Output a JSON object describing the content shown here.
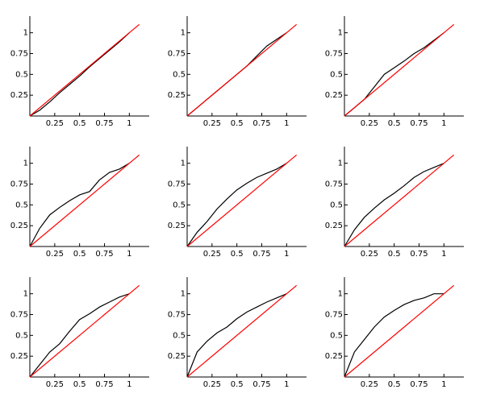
{
  "chart_data": [
    {
      "type": "line",
      "xlim": [
        0,
        1.2
      ],
      "ylim": [
        0,
        1.2
      ],
      "xticks": [
        0.25,
        0.5,
        0.75,
        1
      ],
      "yticks": [
        0.25,
        0.5,
        0.75,
        1
      ],
      "series": [
        {
          "color": "#000000",
          "x": [
            0,
            0.1,
            0.2,
            0.3,
            0.4,
            0.5,
            0.6,
            0.7,
            0.8,
            0.9,
            1
          ],
          "values": [
            0,
            0.07,
            0.17,
            0.28,
            0.38,
            0.48,
            0.59,
            0.69,
            0.79,
            0.89,
            1
          ]
        },
        {
          "color": "#ff0000",
          "x": [
            0,
            1.1
          ],
          "values": [
            0,
            1.1
          ]
        }
      ]
    },
    {
      "type": "line",
      "xlim": [
        0,
        1.2
      ],
      "ylim": [
        0,
        1.2
      ],
      "xticks": [
        0.25,
        0.5,
        0.75,
        1
      ],
      "yticks": [
        0.25,
        0.5,
        0.75,
        1
      ],
      "series": [
        {
          "color": "#000000",
          "x": [
            0,
            0.1,
            0.2,
            0.3,
            0.4,
            0.5,
            0.6,
            0.7,
            0.8,
            0.9,
            1
          ],
          "values": [
            0,
            0.1,
            0.2,
            0.3,
            0.4,
            0.5,
            0.6,
            0.72,
            0.84,
            0.92,
            1
          ]
        },
        {
          "color": "#ff0000",
          "x": [
            0,
            1.1
          ],
          "values": [
            0,
            1.1
          ]
        }
      ]
    },
    {
      "type": "line",
      "xlim": [
        0,
        1.2
      ],
      "ylim": [
        0,
        1.2
      ],
      "xticks": [
        0.25,
        0.5,
        0.75,
        1
      ],
      "yticks": [
        0.25,
        0.5,
        0.75,
        1
      ],
      "series": [
        {
          "color": "#000000",
          "x": [
            0,
            0.1,
            0.2,
            0.3,
            0.4,
            0.5,
            0.6,
            0.7,
            0.8,
            0.9,
            1
          ],
          "values": [
            0,
            0.1,
            0.2,
            0.35,
            0.5,
            0.58,
            0.66,
            0.75,
            0.82,
            0.91,
            1
          ]
        },
        {
          "color": "#ff0000",
          "x": [
            0,
            1.1
          ],
          "values": [
            0,
            1.1
          ]
        }
      ]
    },
    {
      "type": "line",
      "xlim": [
        0,
        1.2
      ],
      "ylim": [
        0,
        1.2
      ],
      "xticks": [
        0.25,
        0.5,
        0.75,
        1
      ],
      "yticks": [
        0.25,
        0.5,
        0.75,
        1
      ],
      "series": [
        {
          "color": "#000000",
          "x": [
            0,
            0.1,
            0.2,
            0.3,
            0.4,
            0.5,
            0.6,
            0.7,
            0.8,
            0.9,
            1
          ],
          "values": [
            0,
            0.22,
            0.38,
            0.47,
            0.55,
            0.62,
            0.66,
            0.8,
            0.89,
            0.93,
            1
          ]
        },
        {
          "color": "#ff0000",
          "x": [
            0,
            1.1
          ],
          "values": [
            0,
            1.1
          ]
        }
      ]
    },
    {
      "type": "line",
      "xlim": [
        0,
        1.2
      ],
      "ylim": [
        0,
        1.2
      ],
      "xticks": [
        0.25,
        0.5,
        0.75,
        1
      ],
      "yticks": [
        0.25,
        0.5,
        0.75,
        1
      ],
      "series": [
        {
          "color": "#000000",
          "x": [
            0,
            0.1,
            0.2,
            0.3,
            0.4,
            0.5,
            0.6,
            0.7,
            0.8,
            0.9,
            1
          ],
          "values": [
            0,
            0.17,
            0.3,
            0.45,
            0.57,
            0.68,
            0.76,
            0.83,
            0.88,
            0.93,
            1
          ]
        },
        {
          "color": "#ff0000",
          "x": [
            0,
            1.1
          ],
          "values": [
            0,
            1.1
          ]
        }
      ]
    },
    {
      "type": "line",
      "xlim": [
        0,
        1.2
      ],
      "ylim": [
        0,
        1.2
      ],
      "xticks": [
        0.25,
        0.5,
        0.75,
        1
      ],
      "yticks": [
        0.25,
        0.5,
        0.75,
        1
      ],
      "series": [
        {
          "color": "#000000",
          "x": [
            0,
            0.1,
            0.2,
            0.3,
            0.4,
            0.5,
            0.6,
            0.7,
            0.8,
            0.9,
            1
          ],
          "values": [
            0,
            0.2,
            0.35,
            0.46,
            0.56,
            0.64,
            0.73,
            0.83,
            0.9,
            0.95,
            1
          ]
        },
        {
          "color": "#ff0000",
          "x": [
            0,
            1.1
          ],
          "values": [
            0,
            1.1
          ]
        }
      ]
    },
    {
      "type": "line",
      "xlim": [
        0,
        1.2
      ],
      "ylim": [
        0,
        1.2
      ],
      "xticks": [
        0.25,
        0.5,
        0.75,
        1
      ],
      "yticks": [
        0.25,
        0.5,
        0.75,
        1
      ],
      "series": [
        {
          "color": "#000000",
          "x": [
            0,
            0.1,
            0.2,
            0.3,
            0.4,
            0.5,
            0.6,
            0.7,
            0.8,
            0.9,
            1
          ],
          "values": [
            0,
            0.15,
            0.3,
            0.4,
            0.55,
            0.69,
            0.76,
            0.84,
            0.9,
            0.96,
            1
          ]
        },
        {
          "color": "#ff0000",
          "x": [
            0,
            1.1
          ],
          "values": [
            0,
            1.1
          ]
        }
      ]
    },
    {
      "type": "line",
      "xlim": [
        0,
        1.2
      ],
      "ylim": [
        0,
        1.2
      ],
      "xticks": [
        0.25,
        0.5,
        0.75,
        1
      ],
      "yticks": [
        0.25,
        0.5,
        0.75,
        1
      ],
      "series": [
        {
          "color": "#000000",
          "x": [
            0,
            0.1,
            0.2,
            0.3,
            0.4,
            0.5,
            0.6,
            0.7,
            0.8,
            0.9,
            1
          ],
          "values": [
            0,
            0.3,
            0.43,
            0.53,
            0.6,
            0.7,
            0.78,
            0.84,
            0.9,
            0.95,
            1
          ]
        },
        {
          "color": "#ff0000",
          "x": [
            0,
            1.1
          ],
          "values": [
            0,
            1.1
          ]
        }
      ]
    },
    {
      "type": "line",
      "xlim": [
        0,
        1.2
      ],
      "ylim": [
        0,
        1.2
      ],
      "xticks": [
        0.25,
        0.5,
        0.75,
        1
      ],
      "yticks": [
        0.25,
        0.5,
        0.75,
        1
      ],
      "series": [
        {
          "color": "#000000",
          "x": [
            0,
            0.1,
            0.2,
            0.3,
            0.4,
            0.5,
            0.6,
            0.7,
            0.8,
            0.9,
            1
          ],
          "values": [
            0,
            0.3,
            0.45,
            0.6,
            0.72,
            0.8,
            0.87,
            0.92,
            0.95,
            1,
            1
          ]
        },
        {
          "color": "#ff0000",
          "x": [
            0,
            1.1
          ],
          "values": [
            0,
            1.1
          ]
        }
      ]
    }
  ]
}
